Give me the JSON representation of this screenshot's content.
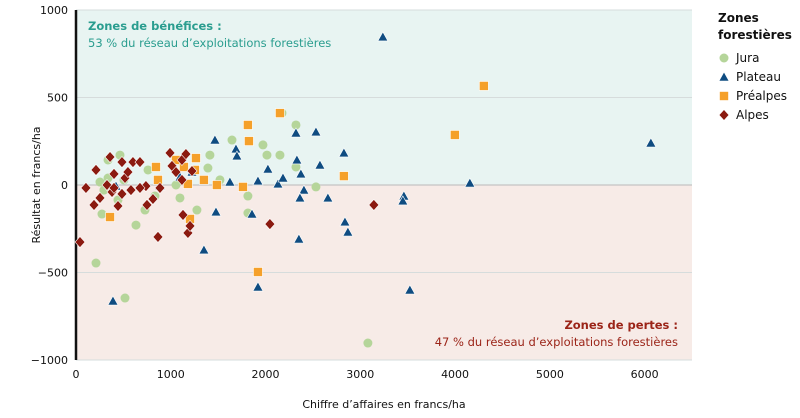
{
  "chart_data": {
    "type": "scatter",
    "xlabel": "Chiffre d’affaires en francs/ha",
    "ylabel": "Résultat en francs/ha",
    "xlim": [
      0,
      6500
    ],
    "ylim": [
      -1000,
      1000
    ],
    "xticks": [
      0,
      1000,
      2000,
      3000,
      4000,
      5000,
      6000
    ],
    "yticks": [
      1000,
      500,
      0,
      -500,
      -1000
    ],
    "ytick_labels": [
      "1000",
      "500",
      "0",
      "−500",
      "−1000"
    ],
    "grid": "horizontal",
    "legend_title": "Zones forestières",
    "legend_position": "right",
    "zones": {
      "profit": {
        "title": "Zones de bénéfices :",
        "text": "53 % du réseau d’exploitations forestières",
        "color": "#2a9d8f",
        "fill": "#e8f4f2"
      },
      "loss": {
        "title": "Zones de pertes :",
        "text": "47 % du réseau d’exploitations forestières",
        "color": "#9b2418",
        "fill": "#f7ebe7"
      }
    },
    "series": [
      {
        "name": "Jura",
        "marker": "circle",
        "color": "#b5d59a",
        "points": [
          [
            2173,
            411
          ],
          [
            464,
            171
          ],
          [
            338,
            143
          ],
          [
            1646,
            257
          ],
          [
            1973,
            229
          ],
          [
            2015,
            171
          ],
          [
            2321,
            343
          ],
          [
            2321,
            103
          ],
          [
            2532,
            -11
          ],
          [
            3080,
            -903
          ],
          [
            211,
            -446
          ],
          [
            517,
            -646
          ],
          [
            1392,
            97
          ],
          [
            1519,
            29
          ],
          [
            1814,
            -63
          ],
          [
            1814,
            -160
          ],
          [
            1276,
            -143
          ],
          [
            1097,
            -74
          ],
          [
            633,
            -229
          ],
          [
            338,
            40
          ],
          [
            253,
            17
          ],
          [
            295,
            -29
          ],
          [
            274,
            -166
          ],
          [
            443,
            -86
          ],
          [
            506,
            29
          ],
          [
            760,
            86
          ],
          [
            833,
            -63
          ],
          [
            728,
            -143
          ],
          [
            1055,
            0
          ],
          [
            1413,
            171
          ],
          [
            2152,
            171
          ]
        ]
      },
      {
        "name": "Plateau",
        "marker": "triangle",
        "color": "#0f4c81",
        "points": [
          [
            3238,
            846
          ],
          [
            6066,
            240
          ],
          [
            4156,
            11
          ],
          [
            2532,
            303
          ],
          [
            2321,
            297
          ],
          [
            2574,
            114
          ],
          [
            2827,
            183
          ],
          [
            2838,
            -211
          ],
          [
            2869,
            -269
          ],
          [
            3460,
            -63
          ],
          [
            3449,
            -91
          ],
          [
            3523,
            -600
          ],
          [
            1466,
            257
          ],
          [
            1688,
            206
          ],
          [
            1698,
            166
          ],
          [
            1224,
            74
          ],
          [
            1097,
            46
          ],
          [
            1624,
            17
          ],
          [
            1920,
            23
          ],
          [
            2025,
            91
          ],
          [
            2131,
            6
          ],
          [
            2184,
            40
          ],
          [
            2331,
            143
          ],
          [
            2373,
            63
          ],
          [
            2405,
            -29
          ],
          [
            2363,
            -74
          ],
          [
            2658,
            -74
          ],
          [
            1857,
            -166
          ],
          [
            1477,
            -154
          ],
          [
            1350,
            -371
          ],
          [
            1920,
            -583
          ],
          [
            2352,
            -309
          ],
          [
            390,
            -663
          ],
          [
            886,
            -6
          ],
          [
            422,
            -6
          ]
        ]
      },
      {
        "name": "Préalpes",
        "marker": "square",
        "color": "#f5a02a",
        "points": [
          [
            4304,
            566
          ],
          [
            3998,
            286
          ],
          [
            2827,
            51
          ],
          [
            2152,
            411
          ],
          [
            1814,
            343
          ],
          [
            1825,
            251
          ],
          [
            1762,
            -11
          ],
          [
            1920,
            -497
          ],
          [
            1181,
            6
          ],
          [
            1203,
            -194
          ],
          [
            844,
            103
          ],
          [
            865,
            29
          ],
          [
            1055,
            143
          ],
          [
            1266,
            154
          ],
          [
            1255,
            86
          ],
          [
            1350,
            29
          ],
          [
            359,
            -183
          ],
          [
            1139,
            103
          ],
          [
            1487,
            0
          ]
        ]
      },
      {
        "name": "Alpes",
        "marker": "diamond",
        "color": "#8b1a10",
        "points": [
          [
            42,
            -326
          ],
          [
            105,
            -17
          ],
          [
            190,
            -114
          ],
          [
            253,
            -74
          ],
          [
            327,
            0
          ],
          [
            380,
            -40
          ],
          [
            443,
            -120
          ],
          [
            401,
            -17
          ],
          [
            485,
            -51
          ],
          [
            517,
            40
          ],
          [
            601,
            131
          ],
          [
            675,
            131
          ],
          [
            738,
            -6
          ],
          [
            749,
            -114
          ],
          [
            812,
            -80
          ],
          [
            865,
            -297
          ],
          [
            992,
            183
          ],
          [
            1013,
            109
          ],
          [
            1055,
            74
          ],
          [
            1118,
            143
          ],
          [
            1118,
            29
          ],
          [
            1160,
            177
          ],
          [
            1224,
            80
          ],
          [
            1129,
            -171
          ],
          [
            1181,
            -274
          ],
          [
            1203,
            -234
          ],
          [
            2046,
            -223
          ],
          [
            3143,
            -114
          ],
          [
            401,
            63
          ],
          [
            211,
            86
          ],
          [
            548,
            74
          ],
          [
            359,
            160
          ],
          [
            485,
            131
          ],
          [
            580,
            -29
          ],
          [
            675,
            -17
          ],
          [
            886,
            -17
          ]
        ]
      }
    ]
  }
}
